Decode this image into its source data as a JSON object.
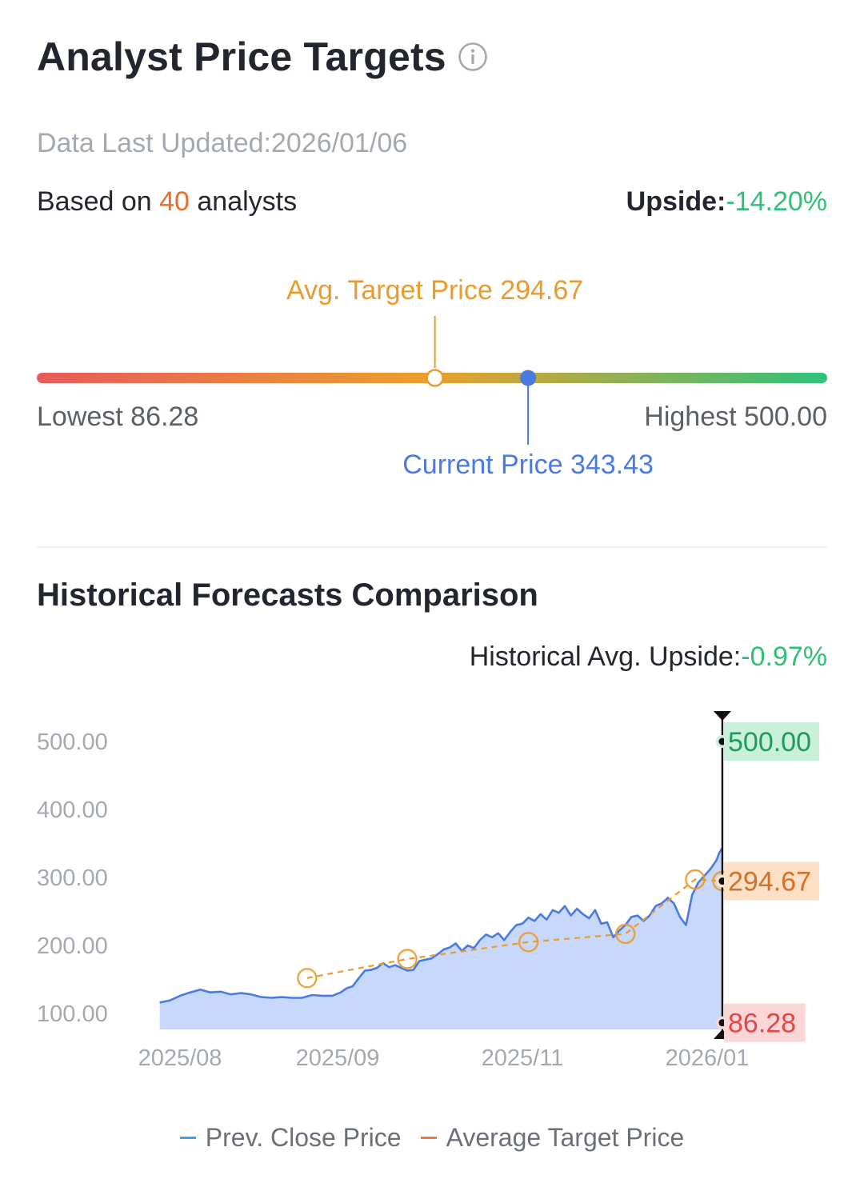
{
  "header": {
    "title": "Analyst Price Targets",
    "updated": "Data Last Updated:2026/01/06",
    "based_prefix": "Based on ",
    "analyst_count": "40",
    "based_suffix": " analysts",
    "upside_label": "Upside:",
    "upside_value": "-14.20%"
  },
  "range": {
    "avg_label": "Avg. Target Price 294.67",
    "current_label": "Current Price 343.43",
    "lowest_label": "Lowest 86.28",
    "highest_label": "Highest 500.00",
    "lowest": 86.28,
    "highest": 500.0,
    "average": 294.67,
    "current": 343.43,
    "colors": {
      "low": "#e85a5a",
      "mid": "#eba02e",
      "high": "#2fc27a",
      "avg": "#eb9a2e",
      "current": "#4a7be0"
    }
  },
  "historical": {
    "title": "Historical Forecasts Comparison",
    "upside_label": "Historical Avg. Upside:",
    "upside_value": "-0.97%",
    "legend": [
      {
        "label": "Prev. Close Price",
        "color": "#3aa0e8"
      },
      {
        "label": "Average Target Price",
        "color": "#ea7a3a"
      }
    ]
  },
  "chart_data": {
    "type": "area",
    "title": "Historical Forecasts Comparison",
    "xlabel": "",
    "ylabel": "",
    "ylim": [
      75,
      540
    ],
    "y_ticks": [
      "100.00",
      "200.00",
      "300.00",
      "400.00",
      "500.00"
    ],
    "x_ticks": [
      "2025/08",
      "2025/09",
      "2025/11",
      "2026/01"
    ],
    "x_tick_values": [
      "2025-08-01",
      "2025-09-01",
      "2025-11-01",
      "2026-01-01"
    ],
    "grid": false,
    "legend_position": "bottom",
    "series": [
      {
        "name": "Prev. Close Price",
        "type": "area",
        "color": "#4a7be0",
        "fill": "#c7d8fa",
        "points": [
          [
            "2025-07-28",
            116
          ],
          [
            "2025-07-30",
            119
          ],
          [
            "2025-08-01",
            126
          ],
          [
            "2025-08-03",
            131
          ],
          [
            "2025-08-05",
            135
          ],
          [
            "2025-08-07",
            131
          ],
          [
            "2025-08-09",
            132
          ],
          [
            "2025-08-11",
            128
          ],
          [
            "2025-08-13",
            130
          ],
          [
            "2025-08-15",
            128
          ],
          [
            "2025-08-17",
            124
          ],
          [
            "2025-08-19",
            123
          ],
          [
            "2025-08-21",
            124
          ],
          [
            "2025-08-23",
            123
          ],
          [
            "2025-08-25",
            123
          ],
          [
            "2025-08-27",
            127
          ],
          [
            "2025-08-29",
            126
          ],
          [
            "2025-08-31",
            126
          ],
          [
            "2025-09-02",
            131
          ],
          [
            "2025-09-04",
            137
          ],
          [
            "2025-09-06",
            140
          ],
          [
            "2025-09-08",
            152
          ],
          [
            "2025-09-10",
            163
          ],
          [
            "2025-09-12",
            164
          ],
          [
            "2025-09-14",
            167
          ],
          [
            "2025-09-16",
            174
          ],
          [
            "2025-09-18",
            168
          ],
          [
            "2025-09-20",
            171
          ],
          [
            "2025-09-22",
            167
          ],
          [
            "2025-09-24",
            163
          ],
          [
            "2025-09-26",
            164
          ],
          [
            "2025-09-28",
            177
          ],
          [
            "2025-09-30",
            179
          ],
          [
            "2025-10-02",
            181
          ],
          [
            "2025-10-04",
            187
          ],
          [
            "2025-10-06",
            194
          ],
          [
            "2025-10-08",
            197
          ],
          [
            "2025-10-10",
            203
          ],
          [
            "2025-10-12",
            192
          ],
          [
            "2025-10-14",
            200
          ],
          [
            "2025-10-16",
            196
          ],
          [
            "2025-10-18",
            208
          ],
          [
            "2025-10-20",
            216
          ],
          [
            "2025-10-22",
            212
          ],
          [
            "2025-10-24",
            218
          ],
          [
            "2025-10-26",
            208
          ],
          [
            "2025-10-28",
            220
          ],
          [
            "2025-10-30",
            230
          ],
          [
            "2025-11-01",
            232
          ],
          [
            "2025-11-03",
            241
          ],
          [
            "2025-11-05",
            236
          ],
          [
            "2025-11-07",
            246
          ],
          [
            "2025-11-09",
            238
          ],
          [
            "2025-11-11",
            252
          ],
          [
            "2025-11-13",
            248
          ],
          [
            "2025-11-15",
            258
          ],
          [
            "2025-11-17",
            244
          ],
          [
            "2025-11-19",
            254
          ],
          [
            "2025-11-21",
            246
          ],
          [
            "2025-11-23",
            240
          ],
          [
            "2025-11-25",
            252
          ],
          [
            "2025-11-27",
            232
          ],
          [
            "2025-11-29",
            234
          ],
          [
            "2025-12-01",
            212
          ],
          [
            "2025-12-03",
            222
          ],
          [
            "2025-12-05",
            230
          ],
          [
            "2025-12-07",
            242
          ],
          [
            "2025-12-09",
            244
          ],
          [
            "2025-12-11",
            236
          ],
          [
            "2025-12-13",
            244
          ],
          [
            "2025-12-15",
            258
          ],
          [
            "2025-12-17",
            262
          ],
          [
            "2025-12-19",
            270
          ],
          [
            "2025-12-21",
            262
          ],
          [
            "2025-12-23",
            242
          ],
          [
            "2025-12-25",
            230
          ],
          [
            "2025-12-27",
            274
          ],
          [
            "2025-12-29",
            292
          ],
          [
            "2025-12-31",
            302
          ],
          [
            "2026-01-02",
            312
          ],
          [
            "2026-01-04",
            325
          ],
          [
            "2026-01-05",
            336
          ],
          [
            "2026-01-06",
            343.43
          ]
        ]
      },
      {
        "name": "Average Target Price",
        "type": "line",
        "color": "#eb9a2e",
        "dashed": true,
        "points": [
          [
            "2025-08-26",
            152
          ],
          [
            "2025-09-24",
            180
          ],
          [
            "2025-11-03",
            205
          ],
          [
            "2025-12-05",
            217
          ],
          [
            "2025-12-28",
            297
          ],
          [
            "2026-01-06",
            294.67
          ]
        ]
      }
    ],
    "markers": [
      {
        "label": "500.00",
        "value": 500.0,
        "color": "#1f9a5c",
        "bg": "#c9f0da"
      },
      {
        "label": "294.67",
        "value": 294.67,
        "color": "#d4702a",
        "bg": "#fde0c6"
      },
      {
        "label": "86.28",
        "value": 86.28,
        "color": "#e04848",
        "bg": "#fbd6d6"
      }
    ],
    "marker_date": "2026-01-06"
  }
}
